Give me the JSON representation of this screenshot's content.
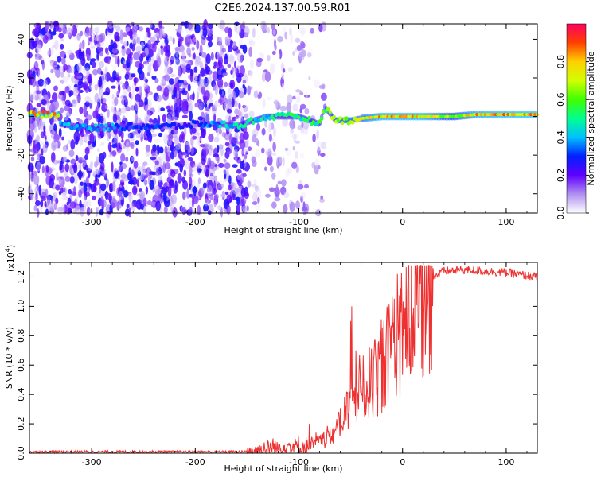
{
  "title": "C2E6.2024.137.00.59.R01",
  "chart_data": [
    {
      "type": "heatmap",
      "name": "spectrogram",
      "xlabel": "Height of straight line (km)",
      "ylabel": "Frequency (Hz)",
      "xlim": [
        -360,
        130
      ],
      "ylim": [
        -50,
        48
      ],
      "xticks": [
        -300,
        -200,
        -100,
        0,
        100
      ],
      "yticks": [
        -40,
        -20,
        0,
        20,
        40
      ],
      "colorbar": {
        "label": "Normalized spectral amplitude",
        "range": [
          0,
          1
        ],
        "ticks": [
          "0.0",
          "0.2",
          "0.4",
          "0.6",
          "0.8"
        ],
        "tick_values": [
          0,
          0.2,
          0.4,
          0.6,
          0.8
        ],
        "colors": [
          "#ffffff",
          "#b090f0",
          "#6000ff",
          "#0020ff",
          "#00c0ff",
          "#00ff90",
          "#40ff00",
          "#d0ff00",
          "#ffd000",
          "#ff4000",
          "#ff0060"
        ]
      },
      "ridge": [
        {
          "x": -330,
          "y": -4,
          "v": 0.45
        },
        {
          "x": -300,
          "y": -6,
          "v": 0.45
        },
        {
          "x": -260,
          "y": -5,
          "v": 0.35
        },
        {
          "x": -220,
          "y": -5,
          "v": 0.3
        },
        {
          "x": -200,
          "y": -4,
          "v": 0.3
        },
        {
          "x": -175,
          "y": -4,
          "v": 0.45
        },
        {
          "x": -160,
          "y": -5,
          "v": 0.5
        },
        {
          "x": -150,
          "y": -3,
          "v": 0.5
        },
        {
          "x": -130,
          "y": 0,
          "v": 0.5
        },
        {
          "x": -110,
          "y": 0,
          "v": 0.55
        },
        {
          "x": -100,
          "y": 0,
          "v": 0.55
        },
        {
          "x": -90,
          "y": -2,
          "v": 0.55
        },
        {
          "x": -80,
          "y": -4,
          "v": 0.6
        },
        {
          "x": -75,
          "y": 5,
          "v": 0.6
        },
        {
          "x": -65,
          "y": -2,
          "v": 0.7
        },
        {
          "x": -50,
          "y": -2,
          "v": 0.75
        },
        {
          "x": -40,
          "y": -1,
          "v": 0.75
        },
        {
          "x": -20,
          "y": 0,
          "v": 0.85
        },
        {
          "x": -10,
          "y": 0,
          "v": 0.85
        },
        {
          "x": 0,
          "y": 0,
          "v": 0.85
        },
        {
          "x": 20,
          "y": 0,
          "v": 0.85
        },
        {
          "x": 50,
          "y": 0,
          "v": 0.65
        },
        {
          "x": 70,
          "y": 1,
          "v": 0.85
        },
        {
          "x": 100,
          "y": 1,
          "v": 0.88
        },
        {
          "x": 130,
          "y": 1,
          "v": 0.88
        }
      ],
      "noise_extent_x": -95
    },
    {
      "type": "line",
      "name": "snr",
      "xlabel": "Height of straight line (km)",
      "ylabel": "SNR (10 * v/v)",
      "yscale_label": "(x10",
      "yscale_exp": "4",
      "yscale_close": ")",
      "xlim": [
        -360,
        130
      ],
      "ylim": [
        0,
        1.3
      ],
      "xticks": [
        -300,
        -200,
        -100,
        0,
        100
      ],
      "yticks": [
        0.0,
        0.2,
        0.4,
        0.6,
        0.8,
        1.0,
        1.2
      ],
      "ytick_labels": [
        "0.0",
        "0.2",
        "0.4",
        "0.6",
        "0.8",
        "1.0",
        "1.2"
      ],
      "color": "#ee3030",
      "series_envelope": [
        {
          "x": -360,
          "y": 0.01
        },
        {
          "x": -150,
          "y": 0.01
        },
        {
          "x": -130,
          "y": 0.03
        },
        {
          "x": -110,
          "y": 0.05
        },
        {
          "x": -95,
          "y": 0.04
        },
        {
          "x": -80,
          "y": 0.08
        },
        {
          "x": -70,
          "y": 0.12
        },
        {
          "x": -60,
          "y": 0.2
        },
        {
          "x": -50,
          "y": 0.35
        },
        {
          "x": -40,
          "y": 0.42
        },
        {
          "x": -30,
          "y": 0.48
        },
        {
          "x": -20,
          "y": 0.6
        },
        {
          "x": -10,
          "y": 0.7
        },
        {
          "x": 0,
          "y": 0.8
        },
        {
          "x": 10,
          "y": 0.95
        },
        {
          "x": 20,
          "y": 1.1
        },
        {
          "x": 30,
          "y": 1.2
        },
        {
          "x": 40,
          "y": 1.24
        },
        {
          "x": 60,
          "y": 1.25
        },
        {
          "x": 80,
          "y": 1.24
        },
        {
          "x": 100,
          "y": 1.23
        },
        {
          "x": 130,
          "y": 1.2
        }
      ],
      "spikes": [
        {
          "x": -50,
          "y": 0.9
        },
        {
          "x": -49,
          "y": 1.0
        },
        {
          "x": -45,
          "y": 0.7
        },
        {
          "x": -10,
          "y": 1.07
        },
        {
          "x": -5,
          "y": 1.22
        },
        {
          "x": 5,
          "y": 1.1
        },
        {
          "x": -125,
          "y": 0.1
        },
        {
          "x": -90,
          "y": 0.2
        }
      ]
    }
  ]
}
